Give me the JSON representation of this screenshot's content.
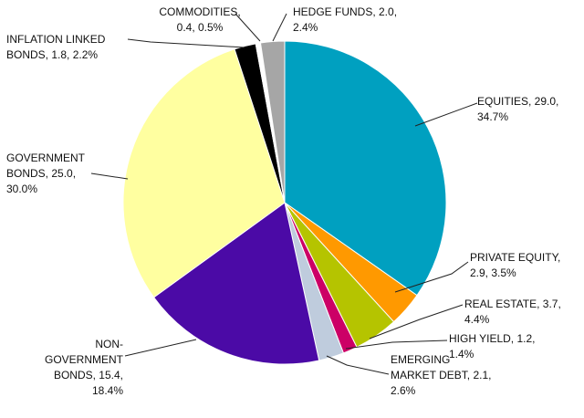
{
  "chart_data": {
    "type": "pie",
    "title": "",
    "start_angle_deg": 0,
    "direction": "clockwise",
    "slices": [
      {
        "key": "equities",
        "value": 29.0,
        "percent": 34.7,
        "color": "#00A0C0",
        "lines": [
          "EQUITIES, 29.0,",
          "34.7%"
        ]
      },
      {
        "key": "private_equity",
        "value": 2.9,
        "percent": 3.5,
        "color": "#FF9900",
        "lines": [
          "PRIVATE EQUITY,",
          "2.9, 3.5%"
        ]
      },
      {
        "key": "real_estate",
        "value": 3.7,
        "percent": 4.4,
        "color": "#B5C400",
        "lines": [
          "REAL ESTATE, 3.7,",
          "4.4%"
        ]
      },
      {
        "key": "high_yield",
        "value": 1.2,
        "percent": 1.4,
        "color": "#CC0066",
        "lines": [
          "HIGH YIELD, 1.2,",
          "1.4%"
        ]
      },
      {
        "key": "emerging",
        "value": 2.1,
        "percent": 2.6,
        "color": "#BFCCDD",
        "lines": [
          "EMERGING",
          "MARKET DEBT, 2.1,",
          "2.6%"
        ]
      },
      {
        "key": "non_gov",
        "value": 15.4,
        "percent": 18.4,
        "color": "#4B0AA6",
        "lines": [
          "NON-",
          "GOVERNMENT",
          "BONDS, 15.4,",
          "18.4%"
        ]
      },
      {
        "key": "gov",
        "value": 25.0,
        "percent": 30.0,
        "color": "#FFFFA0",
        "lines": [
          "GOVERNMENT",
          "BONDS, 25.0,",
          "30.0%"
        ]
      },
      {
        "key": "inflation",
        "value": 1.8,
        "percent": 2.2,
        "color": "#000000",
        "lines": [
          "INFLATION LINKED",
          "BONDS, 1.8, 2.2%"
        ]
      },
      {
        "key": "commodities",
        "value": 0.4,
        "percent": 0.5,
        "color": "#FFFFFF",
        "lines": [
          "COMMODITIES,",
          "0.4, 0.5%"
        ]
      },
      {
        "key": "hedge_funds",
        "value": 2.0,
        "percent": 2.4,
        "color": "#A6A6A6",
        "lines": [
          "HEDGE FUNDS, 2.0,",
          "2.4%"
        ]
      }
    ]
  }
}
